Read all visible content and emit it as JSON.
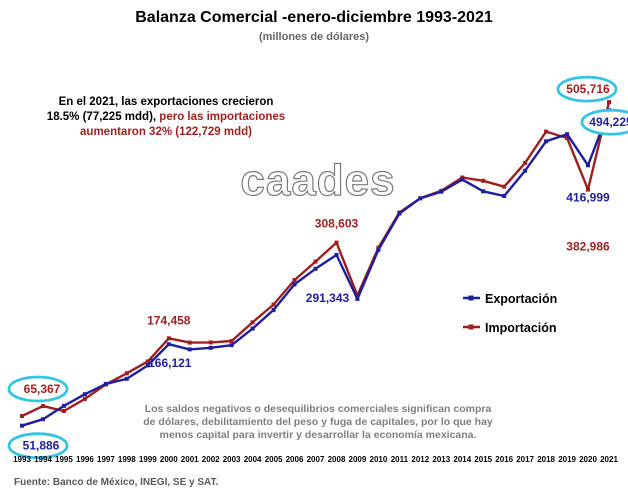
{
  "chart_data": {
    "type": "line",
    "title": "Balanza Comercial -enero-diciembre 1993-2021",
    "subtitle": "(millones de dólares)",
    "x": [
      "1993",
      "1994",
      "1995",
      "1996",
      "1997",
      "1998",
      "1999",
      "2000",
      "2001",
      "2002",
      "2003",
      "2004",
      "2005",
      "2006",
      "2007",
      "2008",
      "2009",
      "2010",
      "2011",
      "2012",
      "2013",
      "2014",
      "2015",
      "2016",
      "2017",
      "2018",
      "2019",
      "2020",
      "2021"
    ],
    "series": [
      {
        "name": "Exportación",
        "color": "#1f1f9e",
        "values": [
          51886,
          60882,
          79542,
          96000,
          110431,
          117539,
          136391,
          166121,
          158780,
          161046,
          164766,
          187999,
          214233,
          249925,
          271875,
          291343,
          229704,
          298473,
          349433,
          370770,
          380015,
          396912,
          380550,
          373948,
          409401,
          450685,
          460604,
          416999,
          494225
        ]
      },
      {
        "name": "Importación",
        "color": "#9e1f1f",
        "values": [
          65367,
          79346,
          72453,
          89469,
          109808,
          125373,
          141975,
          174458,
          168396,
          168679,
          170546,
          196810,
          221820,
          256058,
          281949,
          308603,
          234385,
          301482,
          350843,
          370752,
          381210,
          399977,
          395232,
          387065,
          420395,
          464277,
          455295,
          382986,
          505716
        ]
      }
    ],
    "data_labels": [
      {
        "text": "65,367",
        "series": "Importación",
        "year": "1993",
        "highlight": true
      },
      {
        "text": "51,886",
        "series": "Exportación",
        "year": "1993",
        "highlight": true
      },
      {
        "text": "174,458",
        "series": "Importación",
        "year": "2000",
        "highlight": false
      },
      {
        "text": "166,121",
        "series": "Exportación",
        "year": "2000",
        "highlight": false
      },
      {
        "text": "308,603",
        "series": "Importación",
        "year": "2008",
        "highlight": false
      },
      {
        "text": "291,343",
        "series": "Exportación",
        "year": "2008",
        "highlight": false
      },
      {
        "text": "494,225",
        "series": "Exportación",
        "year": "2021",
        "highlight": true
      },
      {
        "text": "505,716",
        "series": "Importación",
        "year": "2021",
        "highlight": true
      },
      {
        "text": "416,999",
        "series": "Exportación",
        "year": "2020",
        "highlight": false
      },
      {
        "text": "382,986",
        "series": "Importación",
        "year": "2020",
        "highlight": false
      }
    ],
    "legend": {
      "placement": "right",
      "items": [
        "Exportación",
        "Importación"
      ]
    },
    "grid": false,
    "xlabel": "",
    "ylabel": ""
  },
  "annotation": {
    "line1": "En el 2021, las exportaciones crecieron",
    "line2a": "18.5% (77,225 mdd), ",
    "line2b": "pero las importaciones",
    "line3": "aumentaron 32% (122,729 mdd)",
    "color_dark": "#000000",
    "color_red": "#9e1f1f"
  },
  "note": [
    "Los saldos negativos o desequilibrios comerciales significan compra",
    "de dólares, debilitamiento del peso y fuga de capitales, por lo que hay",
    "menos capital para invertir y desarrollar la economía mexicana."
  ],
  "watermark": "caades",
  "source": "Fuente: Banco de México, INEGI, SE y SAT.",
  "highlight_color": "#35c4e6"
}
